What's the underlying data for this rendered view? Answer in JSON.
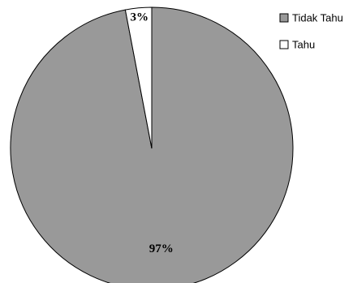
{
  "chart_data": {
    "type": "pie",
    "slices": [
      {
        "name": "Tidak Tahu",
        "value": 97,
        "label": "97%",
        "color": "#999999"
      },
      {
        "name": "Tahu",
        "value": 3,
        "label": "3%",
        "color": "#ffffff"
      }
    ],
    "legend": {
      "position": "top-right",
      "entries": [
        "Tidak Tahu",
        "Tahu"
      ]
    },
    "title": "",
    "start": "top",
    "direction": "clockwise"
  }
}
